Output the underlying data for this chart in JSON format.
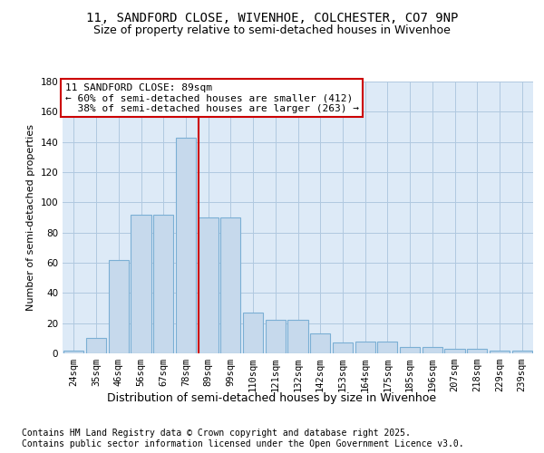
{
  "title1": "11, SANDFORD CLOSE, WIVENHOE, COLCHESTER, CO7 9NP",
  "title2": "Size of property relative to semi-detached houses in Wivenhoe",
  "xlabel": "Distribution of semi-detached houses by size in Wivenhoe",
  "ylabel": "Number of semi-detached properties",
  "categories": [
    "24sqm",
    "35sqm",
    "46sqm",
    "56sqm",
    "67sqm",
    "78sqm",
    "89sqm",
    "99sqm",
    "110sqm",
    "121sqm",
    "132sqm",
    "142sqm",
    "153sqm",
    "164sqm",
    "175sqm",
    "185sqm",
    "196sqm",
    "207sqm",
    "218sqm",
    "229sqm",
    "239sqm"
  ],
  "values": [
    2,
    10,
    62,
    92,
    92,
    143,
    90,
    90,
    27,
    22,
    22,
    13,
    7,
    8,
    8,
    4,
    4,
    3,
    3,
    2,
    2
  ],
  "highlight_index": 6,
  "bar_color": "#c6d9ec",
  "bar_edge_color": "#7bafd4",
  "highlight_line_color": "#cc0000",
  "annotation_box_color": "#cc0000",
  "annotation_line1": "11 SANDFORD CLOSE: 89sqm",
  "annotation_line2": "← 60% of semi-detached houses are smaller (412)",
  "annotation_line3": "  38% of semi-detached houses are larger (263) →",
  "ylim": [
    0,
    180
  ],
  "yticks": [
    0,
    20,
    40,
    60,
    80,
    100,
    120,
    140,
    160,
    180
  ],
  "background_color": "#ddeaf7",
  "grid_color": "#b0c8e0",
  "footer": "Contains HM Land Registry data © Crown copyright and database right 2025.\nContains public sector information licensed under the Open Government Licence v3.0.",
  "title1_fontsize": 10,
  "title2_fontsize": 9,
  "xlabel_fontsize": 9,
  "ylabel_fontsize": 8,
  "tick_fontsize": 7.5,
  "annotation_fontsize": 8,
  "footer_fontsize": 7
}
